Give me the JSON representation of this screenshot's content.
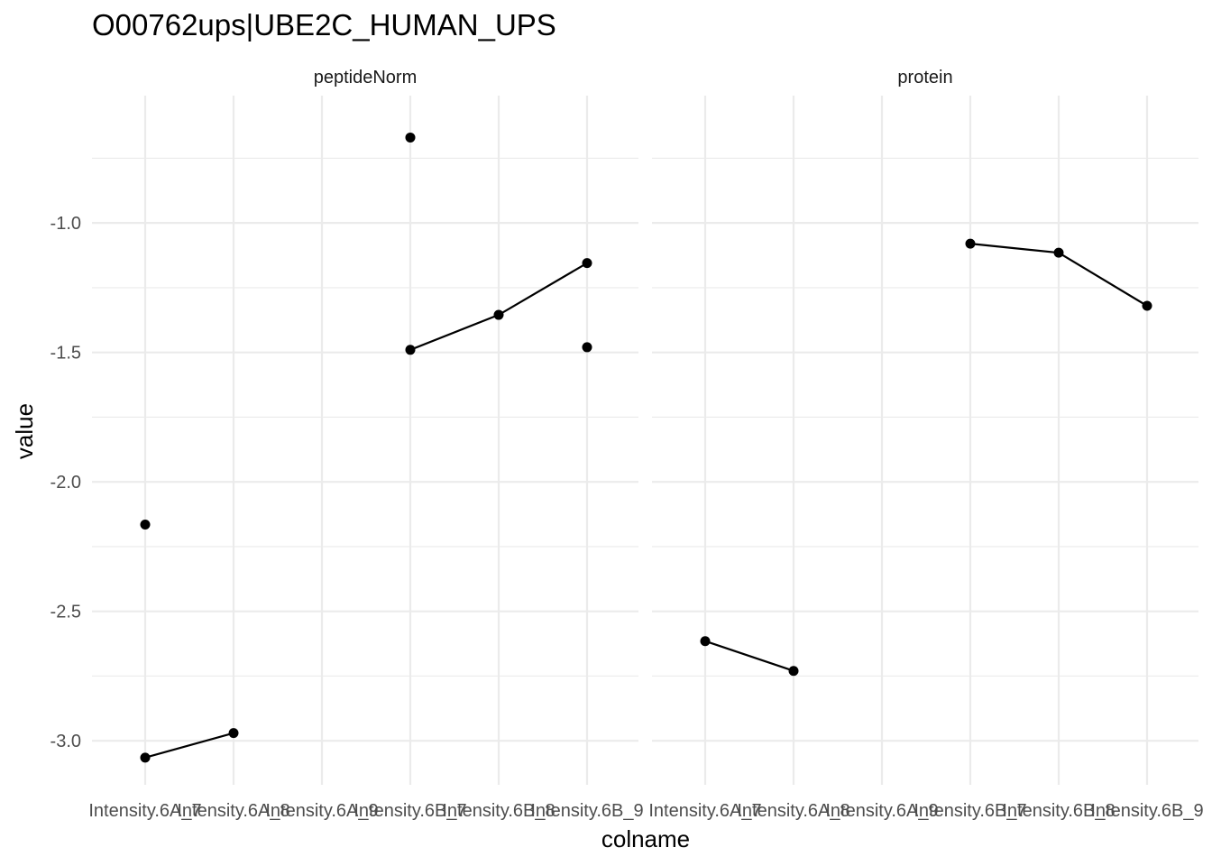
{
  "chart_data": {
    "type": "scatter",
    "title": "O00762ups|UBE2C_HUMAN_UPS",
    "xlabel": "colname",
    "ylabel": "value",
    "categories": [
      "Intensity.6A_7",
      "Intensity.6A_8",
      "Intensity.6A_9",
      "Intensity.6B_7",
      "Intensity.6B_8",
      "Intensity.6B_9"
    ],
    "ylim": [
      -3.17,
      -0.55
    ],
    "y_ticks": [
      -3.0,
      -2.5,
      -2.0,
      -1.5,
      -1.0
    ],
    "y_tick_labels": [
      "-3.0",
      "-2.5",
      "-2.0",
      "-1.5",
      "-1.0"
    ],
    "grid": true,
    "legend": "none",
    "panels": [
      {
        "name": "peptideNorm",
        "points": [
          {
            "x": "Intensity.6A_7",
            "y": -2.165
          },
          {
            "x": "Intensity.6A_7",
            "y": -3.065
          },
          {
            "x": "Intensity.6A_8",
            "y": -2.97
          },
          {
            "x": "Intensity.6B_7",
            "y": -0.67
          },
          {
            "x": "Intensity.6B_7",
            "y": -1.49
          },
          {
            "x": "Intensity.6B_8",
            "y": -1.355
          },
          {
            "x": "Intensity.6B_9",
            "y": -1.155
          },
          {
            "x": "Intensity.6B_9",
            "y": -1.48
          }
        ],
        "lines": [
          [
            {
              "x": "Intensity.6A_7",
              "y": -3.065
            },
            {
              "x": "Intensity.6A_8",
              "y": -2.97
            }
          ],
          [
            {
              "x": "Intensity.6B_7",
              "y": -1.49
            },
            {
              "x": "Intensity.6B_8",
              "y": -1.355
            },
            {
              "x": "Intensity.6B_9",
              "y": -1.155
            }
          ]
        ]
      },
      {
        "name": "protein",
        "points": [
          {
            "x": "Intensity.6A_7",
            "y": -2.615
          },
          {
            "x": "Intensity.6A_8",
            "y": -2.73
          },
          {
            "x": "Intensity.6B_7",
            "y": -1.08
          },
          {
            "x": "Intensity.6B_8",
            "y": -1.115
          },
          {
            "x": "Intensity.6B_9",
            "y": -1.32
          }
        ],
        "lines": [
          [
            {
              "x": "Intensity.6A_7",
              "y": -2.615
            },
            {
              "x": "Intensity.6A_8",
              "y": -2.73
            }
          ],
          [
            {
              "x": "Intensity.6B_7",
              "y": -1.08
            },
            {
              "x": "Intensity.6B_8",
              "y": -1.115
            },
            {
              "x": "Intensity.6B_9",
              "y": -1.32
            }
          ]
        ]
      }
    ]
  }
}
